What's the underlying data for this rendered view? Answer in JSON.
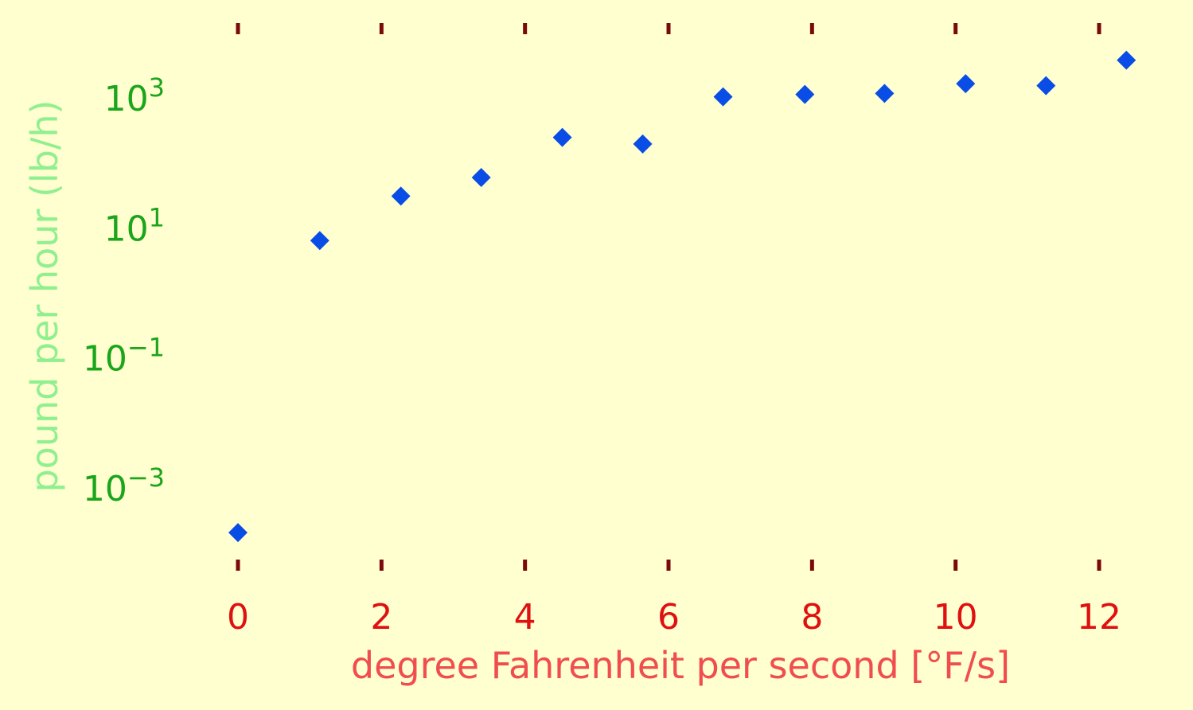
{
  "chart_data": {
    "type": "scatter",
    "title": "",
    "xlabel": "degree Fahrenheit per second [°F/s]",
    "ylabel": "pound per hour (lb/h)",
    "xlim": [
      0,
      12.5
    ],
    "ylim": [
      0.0001,
      10000
    ],
    "yscale": "log",
    "grid": false,
    "legend": "none",
    "x_ticks": [
      0,
      2,
      4,
      6,
      8,
      10,
      12
    ],
    "x_tick_labels": [
      "0",
      "2",
      "4",
      "6",
      "8",
      "10",
      "12"
    ],
    "y_ticks": [
      {
        "value": 1000,
        "base": "10",
        "exp": "3"
      },
      {
        "value": 10,
        "base": "10",
        "exp": "1"
      },
      {
        "value": 0.1,
        "base": "10",
        "exp": "−1"
      },
      {
        "value": 0.001,
        "base": "10",
        "exp": "−3"
      }
    ],
    "series": [
      {
        "x": [
          0,
          1.14,
          2.27,
          3.39,
          4.52,
          5.64,
          6.76,
          7.9,
          9.01,
          10.14,
          11.26,
          12.38
        ],
        "y": [
          0.0002,
          6.2,
          30,
          58,
          240,
          190,
          1010,
          1100,
          1140,
          1610,
          1500,
          3700
        ],
        "color": "#0a4de6",
        "marker": "diamond"
      }
    ],
    "colors": {
      "background": "#ffffd0",
      "tick_marks": "#7a0a0a",
      "x_tick_labels": "#e01010",
      "x_axis_label": "#f04e4e",
      "y_tick_labels": "#1aa51a",
      "y_axis_label": "#90f090"
    }
  }
}
